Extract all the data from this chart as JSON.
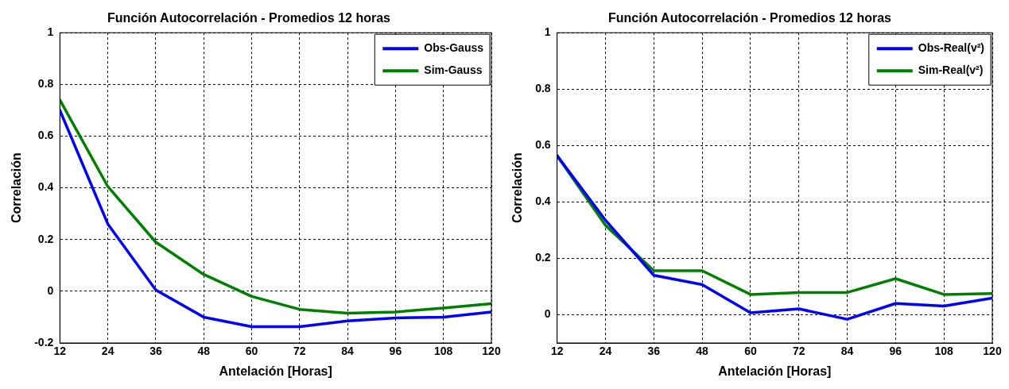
{
  "chart_data": [
    {
      "type": "line",
      "title": "Función Autocorrelación - Promedios 12 horas",
      "xlabel": "Antelación [Horas]",
      "ylabel": "Correlación",
      "x": [
        12,
        24,
        36,
        48,
        60,
        72,
        84,
        96,
        108,
        120
      ],
      "series": [
        {
          "name": "Obs-Gauss",
          "color": "#0000ff",
          "values": [
            0.7,
            0.26,
            0.005,
            -0.1,
            -0.137,
            -0.137,
            -0.115,
            -0.103,
            -0.1,
            -0.08
          ]
        },
        {
          "name": "Sim-Gauss",
          "color": "#008000",
          "values": [
            0.74,
            0.405,
            0.19,
            0.065,
            -0.02,
            -0.07,
            -0.085,
            -0.08,
            -0.065,
            -0.048
          ]
        }
      ],
      "xlim": [
        12,
        120
      ],
      "xticks": [
        12,
        24,
        36,
        48,
        60,
        72,
        84,
        96,
        108,
        120
      ],
      "ylim": [
        -0.2,
        1
      ],
      "yticks": [
        -0.2,
        0,
        0.2,
        0.4,
        0.6,
        0.8,
        1
      ],
      "grid": true,
      "legend": "top right",
      "marker": "none",
      "line_style": "solid"
    },
    {
      "type": "line",
      "title": "Función Autocorrelación - Promedios 12 horas",
      "xlabel": "Antelación [Horas]",
      "ylabel": "Correlación",
      "x": [
        12,
        24,
        36,
        48,
        60,
        72,
        84,
        96,
        108,
        120
      ],
      "series": [
        {
          "name": "Obs-Real(v²)",
          "color": "#0000ff",
          "values": [
            0.564,
            0.335,
            0.14,
            0.107,
            0.007,
            0.021,
            -0.016,
            0.04,
            0.031,
            0.059
          ]
        },
        {
          "name": "Sim-Real(v²)",
          "color": "#008000",
          "values": [
            0.564,
            0.317,
            0.156,
            0.156,
            0.072,
            0.079,
            0.079,
            0.128,
            0.072,
            0.075
          ]
        }
      ],
      "xlim": [
        12,
        120
      ],
      "xticks": [
        12,
        24,
        36,
        48,
        60,
        72,
        84,
        96,
        108,
        120
      ],
      "ylim": [
        -0.1,
        1
      ],
      "yticks": [
        0,
        0.2,
        0.4,
        0.6,
        0.8,
        1
      ],
      "grid": true,
      "legend": "top right",
      "marker": "none",
      "line_style": "solid"
    }
  ]
}
